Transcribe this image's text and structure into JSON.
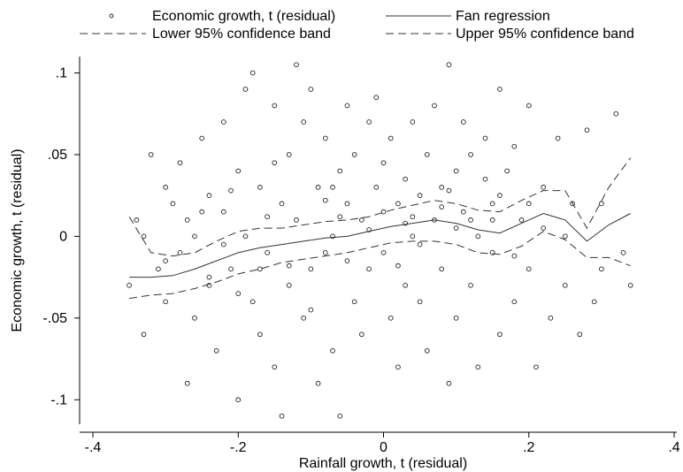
{
  "chart_data": {
    "type": "scatter",
    "xlabel": "Rainfall growth, t (residual)",
    "ylabel": "Economic growth, t (residual)",
    "xlim": [
      -0.4,
      0.4
    ],
    "ylim": [
      -0.115,
      0.11
    ],
    "x_ticks": [
      -0.4,
      -0.2,
      0,
      0.2,
      0.4
    ],
    "x_tick_labels": [
      "-.4",
      "-.2",
      "0",
      ".2",
      ".4"
    ],
    "y_ticks": [
      -0.1,
      -0.05,
      0,
      0.05,
      0.1
    ],
    "y_tick_labels": [
      "-.1",
      "-.05",
      "0",
      ".05",
      ".1"
    ],
    "grid": false,
    "legend": {
      "position": "top",
      "entries": [
        {
          "label": "Economic growth, t (residual)",
          "style": "marker"
        },
        {
          "label": "Fan regression",
          "style": "solid"
        },
        {
          "label": "Lower 95% confidence band",
          "style": "dashed"
        },
        {
          "label": "Upper 95% confidence band",
          "style": "dashed"
        }
      ]
    },
    "series": [
      {
        "name": "Economic growth, t (residual)",
        "kind": "scatter",
        "points": [
          [
            -0.35,
            -0.03
          ],
          [
            -0.34,
            0.01
          ],
          [
            -0.33,
            -0.06
          ],
          [
            -0.32,
            0.05
          ],
          [
            -0.31,
            -0.02
          ],
          [
            -0.3,
            0.03
          ],
          [
            -0.3,
            -0.04
          ],
          [
            -0.29,
            0.02
          ],
          [
            -0.28,
            -0.01
          ],
          [
            -0.28,
            0.045
          ],
          [
            -0.27,
            -0.09
          ],
          [
            -0.26,
            0.0
          ],
          [
            -0.26,
            -0.05
          ],
          [
            -0.25,
            0.06
          ],
          [
            -0.24,
            0.025
          ],
          [
            -0.24,
            -0.03
          ],
          [
            -0.23,
            -0.07
          ],
          [
            -0.22,
            0.015
          ],
          [
            -0.22,
            0.07
          ],
          [
            -0.21,
            -0.02
          ],
          [
            -0.2,
            0.04
          ],
          [
            -0.2,
            -0.1
          ],
          [
            -0.19,
            0.0
          ],
          [
            -0.19,
            0.09
          ],
          [
            -0.18,
            -0.04
          ],
          [
            -0.18,
            0.1
          ],
          [
            -0.17,
            0.03
          ],
          [
            -0.17,
            -0.06
          ],
          [
            -0.16,
            -0.01
          ],
          [
            -0.15,
            0.08
          ],
          [
            -0.15,
            -0.08
          ],
          [
            -0.14,
            0.02
          ],
          [
            -0.14,
            -0.11
          ],
          [
            -0.13,
            0.05
          ],
          [
            -0.13,
            -0.03
          ],
          [
            -0.12,
            0.105
          ],
          [
            -0.12,
            0.01
          ],
          [
            -0.11,
            -0.05
          ],
          [
            -0.11,
            0.07
          ],
          [
            -0.1,
            -0.02
          ],
          [
            -0.1,
            0.09
          ],
          [
            -0.09,
            0.03
          ],
          [
            -0.09,
            -0.09
          ],
          [
            -0.08,
            -0.01
          ],
          [
            -0.08,
            0.06
          ],
          [
            -0.07,
            0.0
          ],
          [
            -0.07,
            -0.07
          ],
          [
            -0.06,
            0.04
          ],
          [
            -0.06,
            -0.11
          ],
          [
            -0.05,
            0.02
          ],
          [
            -0.05,
            0.08
          ],
          [
            -0.04,
            -0.04
          ],
          [
            -0.04,
            0.05
          ],
          [
            -0.03,
            0.01
          ],
          [
            -0.03,
            -0.06
          ],
          [
            -0.02,
            0.07
          ],
          [
            -0.02,
            -0.02
          ],
          [
            -0.01,
            0.085
          ],
          [
            -0.01,
            0.03
          ],
          [
            0.0,
            -0.01
          ],
          [
            0.0,
            0.045
          ],
          [
            0.01,
            -0.05
          ],
          [
            0.01,
            0.06
          ],
          [
            0.02,
            0.02
          ],
          [
            0.02,
            -0.08
          ],
          [
            0.03,
            0.035
          ],
          [
            0.03,
            -0.03
          ],
          [
            0.04,
            0.0
          ],
          [
            0.04,
            0.07
          ],
          [
            0.05,
            -0.04
          ],
          [
            0.05,
            0.025
          ],
          [
            0.06,
            0.05
          ],
          [
            0.06,
            -0.07
          ],
          [
            0.07,
            0.01
          ],
          [
            0.07,
            0.08
          ],
          [
            0.08,
            -0.02
          ],
          [
            0.08,
            0.03
          ],
          [
            0.09,
            0.105
          ],
          [
            0.09,
            -0.09
          ],
          [
            0.1,
            0.04
          ],
          [
            0.1,
            -0.05
          ],
          [
            0.11,
            0.015
          ],
          [
            0.11,
            0.07
          ],
          [
            0.12,
            -0.03
          ],
          [
            0.12,
            0.05
          ],
          [
            0.13,
            0.0
          ],
          [
            0.13,
            -0.08
          ],
          [
            0.14,
            0.035
          ],
          [
            0.14,
            0.06
          ],
          [
            0.15,
            -0.01
          ],
          [
            0.15,
            0.02
          ],
          [
            0.16,
            -0.06
          ],
          [
            0.16,
            0.09
          ],
          [
            0.17,
            0.04
          ],
          [
            0.18,
            -0.04
          ],
          [
            0.18,
            0.055
          ],
          [
            0.19,
            0.01
          ],
          [
            0.2,
            -0.02
          ],
          [
            0.2,
            0.08
          ],
          [
            0.21,
            -0.08
          ],
          [
            0.22,
            0.03
          ],
          [
            0.23,
            -0.05
          ],
          [
            0.24,
            0.06
          ],
          [
            0.25,
            -0.03
          ],
          [
            0.26,
            0.02
          ],
          [
            0.27,
            -0.06
          ],
          [
            0.28,
            0.065
          ],
          [
            0.29,
            -0.04
          ],
          [
            0.3,
            0.02
          ],
          [
            0.32,
            0.075
          ],
          [
            0.33,
            -0.01
          ],
          [
            0.34,
            -0.03
          ],
          [
            -0.3,
            -0.015
          ],
          [
            -0.25,
            0.015
          ],
          [
            -0.2,
            -0.035
          ],
          [
            -0.15,
            0.045
          ],
          [
            -0.1,
            -0.045
          ],
          [
            -0.05,
            -0.015
          ],
          [
            0.0,
            0.015
          ],
          [
            0.05,
            -0.005
          ],
          [
            0.1,
            0.005
          ],
          [
            0.15,
            0.01
          ],
          [
            0.2,
            0.02
          ],
          [
            0.25,
            0.0
          ],
          [
            -0.22,
            -0.005
          ],
          [
            -0.16,
            0.012
          ],
          [
            -0.08,
            0.022
          ],
          [
            -0.02,
            0.004
          ],
          [
            0.04,
            0.012
          ],
          [
            0.08,
            0.018
          ],
          [
            0.12,
            0.01
          ],
          [
            0.18,
            -0.012
          ],
          [
            -0.27,
            0.01
          ],
          [
            -0.21,
            0.028
          ],
          [
            -0.13,
            -0.018
          ],
          [
            -0.06,
            0.012
          ],
          [
            0.02,
            -0.018
          ],
          [
            0.09,
            0.028
          ],
          [
            0.16,
            0.025
          ],
          [
            0.22,
            0.005
          ],
          [
            0.3,
            -0.02
          ],
          [
            -0.33,
            0.0
          ],
          [
            -0.24,
            -0.025
          ],
          [
            -0.17,
            -0.02
          ],
          [
            -0.07,
            0.03
          ],
          [
            0.03,
            0.008
          ]
        ]
      },
      {
        "name": "Fan regression",
        "kind": "line",
        "x": [
          -0.35,
          -0.32,
          -0.29,
          -0.26,
          -0.23,
          -0.2,
          -0.17,
          -0.14,
          -0.11,
          -0.08,
          -0.05,
          -0.02,
          0.01,
          0.04,
          0.07,
          0.1,
          0.13,
          0.16,
          0.19,
          0.22,
          0.25,
          0.28,
          0.31,
          0.34
        ],
        "y": [
          -0.025,
          -0.025,
          -0.024,
          -0.02,
          -0.015,
          -0.01,
          -0.007,
          -0.005,
          -0.003,
          -0.001,
          0.0,
          0.003,
          0.006,
          0.008,
          0.01,
          0.008,
          0.004,
          0.002,
          0.008,
          0.014,
          0.01,
          -0.003,
          0.007,
          0.014
        ]
      },
      {
        "name": "Lower 95% confidence band",
        "kind": "line",
        "x": [
          -0.35,
          -0.32,
          -0.29,
          -0.26,
          -0.23,
          -0.2,
          -0.17,
          -0.14,
          -0.11,
          -0.08,
          -0.05,
          -0.02,
          0.01,
          0.04,
          0.07,
          0.1,
          0.13,
          0.16,
          0.19,
          0.22,
          0.25,
          0.28,
          0.31,
          0.34
        ],
        "y": [
          -0.038,
          -0.036,
          -0.035,
          -0.032,
          -0.028,
          -0.023,
          -0.02,
          -0.016,
          -0.014,
          -0.012,
          -0.01,
          -0.007,
          -0.004,
          -0.003,
          -0.003,
          -0.005,
          -0.01,
          -0.011,
          -0.006,
          0.003,
          -0.002,
          -0.013,
          -0.013,
          -0.018
        ]
      },
      {
        "name": "Upper 95% confidence band",
        "kind": "line",
        "x": [
          -0.35,
          -0.32,
          -0.29,
          -0.26,
          -0.23,
          -0.2,
          -0.17,
          -0.14,
          -0.11,
          -0.08,
          -0.05,
          -0.02,
          0.01,
          0.04,
          0.07,
          0.1,
          0.13,
          0.16,
          0.19,
          0.22,
          0.25,
          0.28,
          0.31,
          0.34
        ],
        "y": [
          0.012,
          -0.01,
          -0.012,
          -0.01,
          -0.003,
          0.003,
          0.005,
          0.005,
          0.007,
          0.009,
          0.01,
          0.012,
          0.016,
          0.019,
          0.022,
          0.02,
          0.016,
          0.015,
          0.022,
          0.028,
          0.028,
          0.005,
          0.03,
          0.048
        ]
      }
    ]
  }
}
